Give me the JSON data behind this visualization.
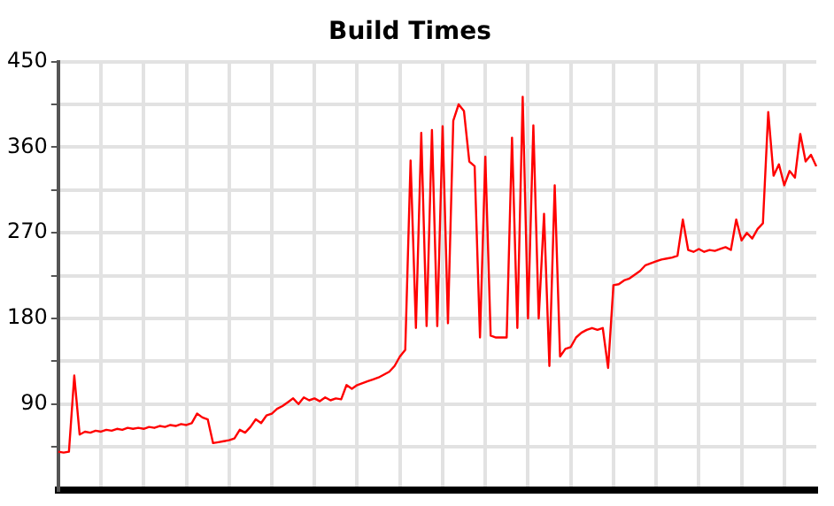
{
  "chart_data": {
    "type": "line",
    "title": "Build Times",
    "categories": [
      null,
      null,
      null,
      null,
      null,
      null,
      null,
      null,
      null,
      null,
      null,
      null,
      null,
      null,
      null,
      null,
      null,
      null,
      null,
      null,
      null,
      null,
      null,
      null,
      null,
      null,
      null,
      null,
      null,
      null,
      null,
      null,
      null,
      null,
      null,
      null,
      null,
      null,
      null,
      null,
      null,
      null,
      null,
      null,
      null,
      null,
      null,
      null,
      null,
      null,
      null,
      null,
      null,
      null,
      null,
      null,
      null,
      null,
      null,
      null,
      null,
      null,
      null,
      null,
      null,
      null,
      null,
      null,
      null,
      null,
      null,
      null,
      null,
      null,
      null,
      null,
      null,
      null,
      null,
      null,
      null,
      null,
      null,
      null,
      null,
      null,
      null,
      null,
      null,
      null,
      null,
      null,
      null,
      null,
      null,
      null,
      null,
      null,
      null,
      null,
      null,
      null,
      null,
      null,
      null,
      null,
      null,
      null,
      null,
      null,
      null,
      null,
      null,
      null,
      null,
      null,
      null,
      null,
      null,
      null,
      null,
      null,
      null,
      null,
      null,
      null,
      null,
      null,
      null,
      null,
      null,
      null,
      null,
      null,
      null,
      null,
      null,
      null,
      null,
      null,
      null,
      null,
      null
    ],
    "series": [
      {
        "color": "#ff0000",
        "values": [
          40,
          39,
          40,
          120,
          58,
          61,
          60,
          62,
          61,
          63,
          62,
          64,
          63,
          65,
          64,
          65,
          64,
          66,
          65,
          67,
          66,
          68,
          67,
          69,
          68,
          70,
          80,
          76,
          74,
          49,
          50,
          51,
          52,
          54,
          63,
          60,
          66,
          74,
          70,
          78,
          80,
          85,
          88,
          92,
          96,
          90,
          97,
          94,
          96,
          93,
          97,
          94,
          96,
          95,
          110,
          106,
          110,
          112,
          114,
          116,
          118,
          121,
          124,
          130,
          140,
          147,
          346,
          170,
          375,
          172,
          378,
          172,
          382,
          175,
          388,
          405,
          398,
          345,
          340,
          160,
          350,
          162,
          160,
          160,
          160,
          370,
          170,
          413,
          180,
          383,
          180,
          290,
          130,
          320,
          140,
          148,
          150,
          160,
          165,
          168,
          170,
          168,
          170,
          128,
          215,
          216,
          220,
          222,
          226,
          230,
          236,
          238,
          240,
          242,
          243,
          244,
          246,
          284,
          252,
          250,
          253,
          250,
          252,
          251,
          253,
          255,
          252,
          284,
          262,
          270,
          264,
          274,
          280,
          397,
          330,
          342,
          320,
          335,
          328,
          374,
          345,
          352,
          340
        ]
      }
    ],
    "ylim": [
      0,
      450
    ],
    "yticks": [
      {
        "value": 45,
        "label": null
      },
      90,
      {
        "value": 135,
        "label": null
      },
      180,
      {
        "value": 225,
        "label": null
      },
      270,
      {
        "value": 315,
        "label": null
      },
      360,
      {
        "value": 405,
        "label": null
      },
      450
    ],
    "grid": true,
    "legend": false,
    "marker": "none",
    "line_style": "solid",
    "tick_labels": "y"
  }
}
